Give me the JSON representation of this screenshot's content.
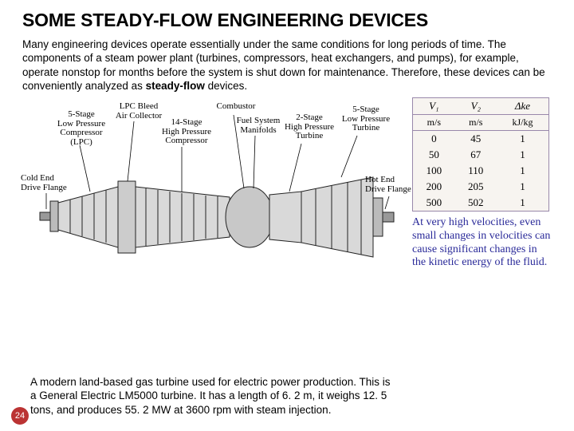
{
  "title": "SOME STEADY-FLOW ENGINEERING DEVICES",
  "intro_html": "Many engineering devices operate essentially under the same conditions for long periods of time. The components of a steam power plant (turbines, compressors, heat exchangers, and pumps), for example, operate nonstop for months before the system is shut down for maintenance. Therefore, these devices can be conveniently analyzed as <b>steady-flow</b> devices.",
  "turbine_labels": {
    "l1": "5-Stage\nLow Pressure\nCompressor\n(LPC)",
    "l2": "LPC Bleed\nAir Collector",
    "l3": "14-Stage\nHigh Pressure\nCompressor",
    "l4": "Combustor",
    "l5": "Fuel System\nManifolds",
    "l6": "2-Stage\nHigh Pressure\nTurbine",
    "l7": "5-Stage\nLow Pressure\nTurbine",
    "l8": "Cold End\nDrive Flange",
    "l9": "Hot End\nDrive Flange"
  },
  "ke_table": {
    "headers": [
      "V₁",
      "V₂",
      "Δke"
    ],
    "units": [
      "m/s",
      "m/s",
      "kJ/kg"
    ],
    "rows": [
      [
        "0",
        "45",
        "1"
      ],
      [
        "50",
        "67",
        "1"
      ],
      [
        "100",
        "110",
        "1"
      ],
      [
        "200",
        "205",
        "1"
      ],
      [
        "500",
        "502",
        "1"
      ]
    ]
  },
  "ke_caption": "At very high velocities, even small changes in velocities can cause significant changes in the kinetic energy of the fluid.",
  "caption": "A modern land-based gas turbine used for electric power production. This is a General Electric LM5000 turbine. It has a length of 6. 2 m, it weighs 12. 5 tons, and produces 55. 2 MW at 3600 rpm with steam injection.",
  "page": "24"
}
